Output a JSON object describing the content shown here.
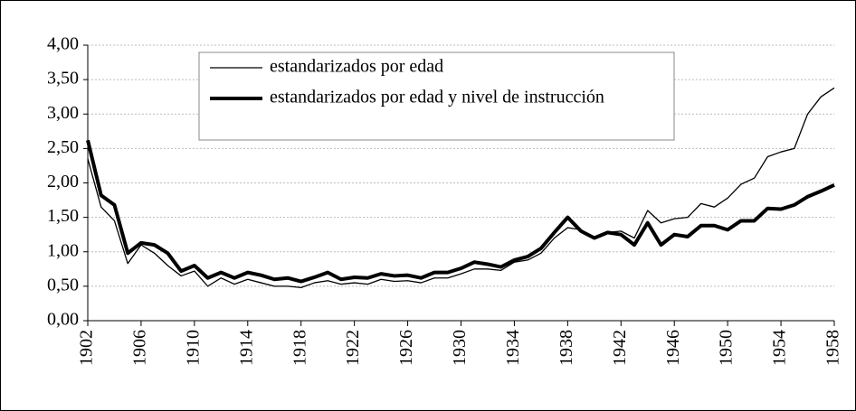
{
  "chart_data": {
    "type": "line",
    "x": [
      1902,
      1903,
      1904,
      1905,
      1906,
      1907,
      1908,
      1909,
      1910,
      1911,
      1912,
      1913,
      1914,
      1915,
      1916,
      1917,
      1918,
      1919,
      1920,
      1921,
      1922,
      1923,
      1924,
      1925,
      1926,
      1927,
      1928,
      1929,
      1930,
      1931,
      1932,
      1933,
      1934,
      1935,
      1936,
      1937,
      1938,
      1939,
      1940,
      1941,
      1942,
      1943,
      1944,
      1945,
      1946,
      1947,
      1948,
      1949,
      1950,
      1951,
      1952,
      1953,
      1954,
      1955,
      1956,
      1957,
      1958
    ],
    "series": [
      {
        "name": "estandarizados por edad",
        "color": "#000000",
        "line_width": 1.3,
        "values": [
          2.35,
          1.65,
          1.45,
          0.83,
          1.1,
          0.98,
          0.8,
          0.65,
          0.72,
          0.5,
          0.62,
          0.53,
          0.6,
          0.55,
          0.5,
          0.5,
          0.48,
          0.55,
          0.58,
          0.53,
          0.55,
          0.53,
          0.6,
          0.57,
          0.58,
          0.55,
          0.62,
          0.62,
          0.68,
          0.75,
          0.75,
          0.73,
          0.85,
          0.88,
          0.98,
          1.2,
          1.35,
          1.32,
          1.2,
          1.28,
          1.3,
          1.2,
          1.6,
          1.42,
          1.48,
          1.5,
          1.7,
          1.65,
          1.78,
          1.98,
          2.07,
          2.38,
          2.45,
          2.5,
          3.0,
          3.25,
          3.38
        ]
      },
      {
        "name": "estandarizados por edad y nivel de instrucción",
        "color": "#000000",
        "line_width": 4,
        "values": [
          2.62,
          1.82,
          1.68,
          0.98,
          1.13,
          1.1,
          0.98,
          0.72,
          0.8,
          0.62,
          0.7,
          0.62,
          0.7,
          0.66,
          0.6,
          0.62,
          0.57,
          0.63,
          0.7,
          0.6,
          0.63,
          0.62,
          0.68,
          0.65,
          0.66,
          0.62,
          0.7,
          0.7,
          0.76,
          0.85,
          0.82,
          0.78,
          0.88,
          0.93,
          1.05,
          1.28,
          1.5,
          1.3,
          1.2,
          1.28,
          1.25,
          1.1,
          1.42,
          1.1,
          1.25,
          1.22,
          1.38,
          1.38,
          1.32,
          1.45,
          1.45,
          1.63,
          1.62,
          1.68,
          1.8,
          1.88,
          1.97
        ]
      }
    ],
    "xlim": [
      1902,
      1958
    ],
    "xticks": [
      1902,
      1906,
      1910,
      1914,
      1918,
      1922,
      1926,
      1930,
      1934,
      1938,
      1942,
      1946,
      1950,
      1954,
      1958
    ],
    "ylim": [
      0,
      4
    ],
    "yticks": [
      {
        "value": 0,
        "label": "0,00"
      },
      {
        "value": 0.5,
        "label": "0,50"
      },
      {
        "value": 1,
        "label": "1,00"
      },
      {
        "value": 1.5,
        "label": "1,50"
      },
      {
        "value": 2,
        "label": "2,00"
      },
      {
        "value": 2.5,
        "label": "2,50"
      },
      {
        "value": 3,
        "label": "3,00"
      },
      {
        "value": 3.5,
        "label": "3,50"
      },
      {
        "value": 4,
        "label": "4,00"
      }
    ],
    "grid": true
  }
}
